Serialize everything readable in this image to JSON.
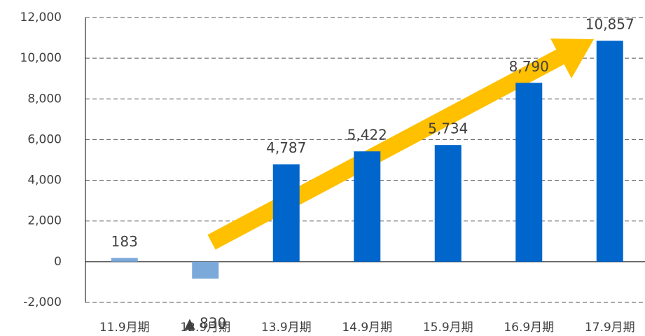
{
  "chart_data": {
    "type": "bar",
    "categories": [
      "11.9月期",
      "12.9月期",
      "13.9月期",
      "14.9月期",
      "15.9月期",
      "16.9月期",
      "17.9月期"
    ],
    "values": [
      183,
      -830,
      4787,
      5422,
      5734,
      8790,
      10857
    ],
    "value_labels": [
      "183",
      "▲ 830",
      "4,787",
      "5,422",
      "5,734",
      "8,790",
      "10,857"
    ],
    "colors": [
      "#7aa9da",
      "#7aa9da",
      "#0066cc",
      "#0066cc",
      "#0066cc",
      "#0066cc",
      "#0066cc"
    ],
    "ylim": [
      -2000,
      12000
    ],
    "yticks": [
      {
        "value": -2000,
        "label": "-2,000"
      },
      0,
      {
        "value": 2000,
        "label": "2,000"
      },
      {
        "value": 4000,
        "label": "4,000"
      },
      {
        "value": 6000,
        "label": "6,000"
      },
      {
        "value": 8000,
        "label": "8,000"
      },
      {
        "value": 10000,
        "label": "10,000"
      },
      {
        "value": 12000,
        "label": "12,000"
      }
    ],
    "grid": true
  }
}
